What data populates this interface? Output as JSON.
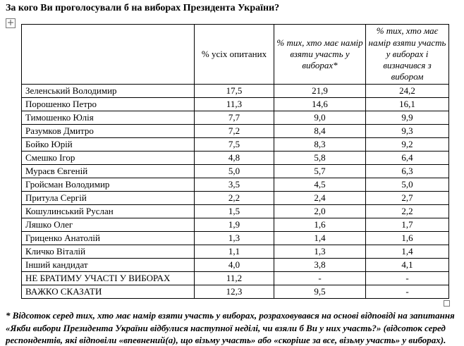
{
  "page": {
    "title": "За кого Ви проголосували б на виборах Президента України?"
  },
  "table": {
    "headers": [
      "",
      "% усіх опитаних",
      "% тих, хто має намір взяти участь у виборах*",
      "% тих, хто має намір взяти участь у виборах і визначився з вибором"
    ],
    "rows": [
      {
        "name": "Зеленський Володимир",
        "values": [
          "17,5",
          "21,9",
          "24,2"
        ]
      },
      {
        "name": "Порошенко Петро",
        "values": [
          "11,3",
          "14,6",
          "16,1"
        ]
      },
      {
        "name": "Тимошенко Юлія",
        "values": [
          "7,7",
          "9,0",
          "9,9"
        ]
      },
      {
        "name": "Разумков Дмитро",
        "values": [
          "7,2",
          "8,4",
          "9,3"
        ]
      },
      {
        "name": "Бойко Юрій",
        "values": [
          "7,5",
          "8,3",
          "9,2"
        ]
      },
      {
        "name": "Смешко Ігор",
        "values": [
          "4,8",
          "5,8",
          "6,4"
        ]
      },
      {
        "name": "Мураєв Євгеній",
        "values": [
          "5,0",
          "5,7",
          "6,3"
        ]
      },
      {
        "name": "Гройсман Володимир",
        "values": [
          "3,5",
          "4,5",
          "5,0"
        ]
      },
      {
        "name": "Притула Сергій",
        "values": [
          "2,2",
          "2,4",
          "2,7"
        ]
      },
      {
        "name": "Кошулинський Руслан",
        "values": [
          "1,5",
          "2,0",
          "2,2"
        ]
      },
      {
        "name": "Ляшко Олег",
        "values": [
          "1,9",
          "1,6",
          "1,7"
        ]
      },
      {
        "name": "Гриценко Анатолій",
        "values": [
          "1,3",
          "1,4",
          "1,6"
        ]
      },
      {
        "name": "Кличко Віталій",
        "values": [
          "1,1",
          "1,3",
          "1,4"
        ]
      },
      {
        "name": "Інший кандидат",
        "values": [
          "4,0",
          "3,8",
          "4,1"
        ]
      },
      {
        "name": "НЕ БРАТИМУ УЧАСТІ У ВИБОРАХ",
        "values": [
          "11,2",
          "-",
          "-"
        ]
      },
      {
        "name": "ВАЖКО СКАЗАТИ",
        "values": [
          "12,3",
          "9,5",
          "-"
        ]
      }
    ]
  },
  "footnote": "* Відсоток серед тих, хто має намір взяти участь у виборах, розраховувався на основі відповіді на запитання «Якби вибори  Президента України відбулися наступної неділі, чи взяли б Ви у них участь?» (відсоток серед респондентів, які відповіли «впевнений(а), що візьму участь» або «скоріше за все, візьму участь» у виборах)."
}
